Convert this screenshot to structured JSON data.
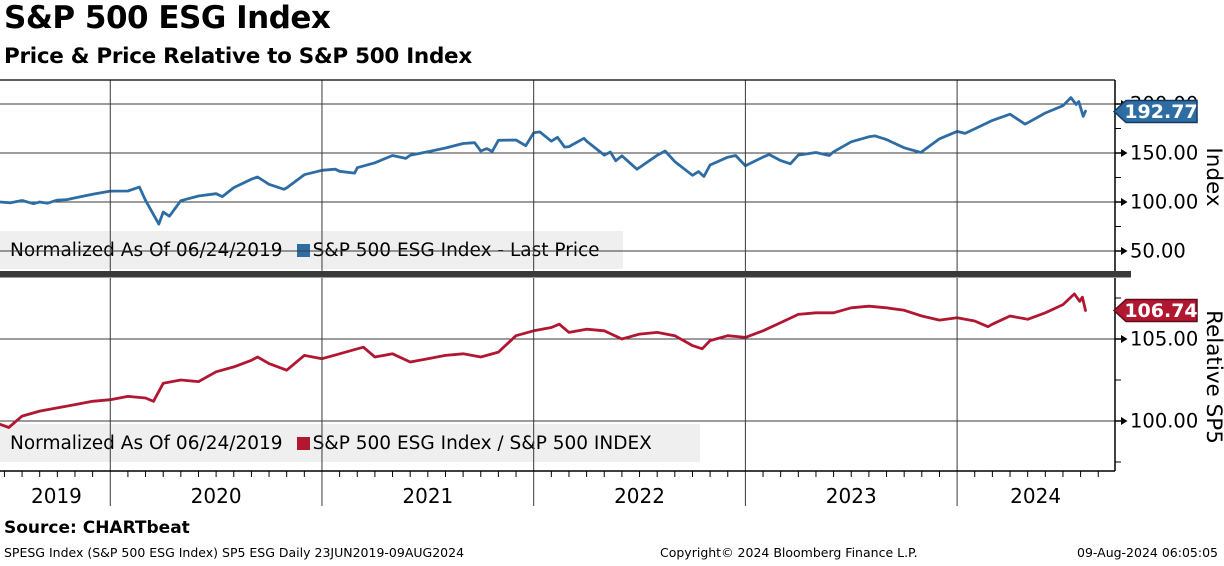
{
  "header": {
    "title": "S&P 500 ESG Index",
    "subtitle": "Price & Price Relative to S&P 500 Index"
  },
  "legends": [
    {
      "note": "Normalized As Of 06/24/2019",
      "series": "S&P 500 ESG Index - Last Price",
      "swatch_color": "#2e6da4"
    },
    {
      "note": "Normalized As Of 06/24/2019",
      "series": "S&P 500 ESG Index / S&P 500 INDEX",
      "swatch_color": "#b11731"
    }
  ],
  "axis_titles": {
    "top": "Index",
    "bottom": "Relative SP5"
  },
  "footer": {
    "source": "Source: CHARTbeat",
    "left": "SPESG Index (S&P 500 ESG Index) SP5 ESG  Daily 23JUN2019-09AUG2024",
    "center": "Copyright© 2024 Bloomberg Finance L.P.",
    "right": "09-Aug-2024 06:05:05"
  },
  "chart_data": {
    "type": "line",
    "x_axis": {
      "xlim_months_from_2019_06_24": [
        0,
        63.2
      ],
      "year_boundaries": [
        6.25,
        18.25,
        30.25,
        42.25,
        54.25
      ],
      "year_labels": [
        {
          "label": "2019",
          "t": 3.2
        },
        {
          "label": "2020",
          "t": 12.25
        },
        {
          "label": "2021",
          "t": 24.25
        },
        {
          "label": "2022",
          "t": 36.25
        },
        {
          "label": "2023",
          "t": 48.25
        },
        {
          "label": "2024",
          "t": 58.7
        }
      ],
      "range_text": "23JUN2019-09AUG2024",
      "frequency": "Daily"
    },
    "panels": [
      {
        "name": "S&P 500 ESG Index - Last Price",
        "color": "#2e6da4",
        "axis_label": "Index",
        "last_value": 192.77,
        "last_label": "192.77",
        "ylim": [
          29.6,
          224.5
        ],
        "yticks": [
          {
            "v": 200,
            "label": "200.00"
          },
          {
            "v": 150,
            "label": "150.00"
          },
          {
            "v": 100,
            "label": "100.00"
          },
          {
            "v": 50,
            "label": "50.00"
          }
        ],
        "yminors": [
          75,
          125,
          175
        ],
        "points": [
          [
            0,
            100
          ],
          [
            0.6,
            99.2
          ],
          [
            1.25,
            101.5
          ],
          [
            1.9,
            98.3
          ],
          [
            2.25,
            100.0
          ],
          [
            2.7,
            98.8
          ],
          [
            3.25,
            101.9
          ],
          [
            3.8,
            102.5
          ],
          [
            4.25,
            104.2
          ],
          [
            5.25,
            108.0
          ],
          [
            6.25,
            111.1
          ],
          [
            7.25,
            111.2
          ],
          [
            7.9,
            115.2
          ],
          [
            8.25,
            101.7
          ],
          [
            9.0,
            77.5
          ],
          [
            9.25,
            89.7
          ],
          [
            9.6,
            85.5
          ],
          [
            10.25,
            101.3
          ],
          [
            11.25,
            106.1
          ],
          [
            12.25,
            108.5
          ],
          [
            12.6,
            105.5
          ],
          [
            13.25,
            114.7
          ],
          [
            14.25,
            123.3
          ],
          [
            14.6,
            125.5
          ],
          [
            15.25,
            118.1
          ],
          [
            16.1,
            113.0
          ],
          [
            16.25,
            114.4
          ],
          [
            17.25,
            127.9
          ],
          [
            18.25,
            132.4
          ],
          [
            19.0,
            133.5
          ],
          [
            19.25,
            131.3
          ],
          [
            20.1,
            129.5
          ],
          [
            20.25,
            135.0
          ],
          [
            21.25,
            140.0
          ],
          [
            22.25,
            147.5
          ],
          [
            23.0,
            144.5
          ],
          [
            23.25,
            147.8
          ],
          [
            24.25,
            151.3
          ],
          [
            25.25,
            155.1
          ],
          [
            26.25,
            159.7
          ],
          [
            26.9,
            160.5
          ],
          [
            27.25,
            152.0
          ],
          [
            27.6,
            154.5
          ],
          [
            27.9,
            151.5
          ],
          [
            28.25,
            163.0
          ],
          [
            29.25,
            163.3
          ],
          [
            29.8,
            157.5
          ],
          [
            30.25,
            170.6
          ],
          [
            30.6,
            171.5
          ],
          [
            31.25,
            162.0
          ],
          [
            31.6,
            166.0
          ],
          [
            32.0,
            156.0
          ],
          [
            32.25,
            156.5
          ],
          [
            33.1,
            165.0
          ],
          [
            33.25,
            162.2
          ],
          [
            34.25,
            147.9
          ],
          [
            34.6,
            151.0
          ],
          [
            34.9,
            142.0
          ],
          [
            35.25,
            147.2
          ],
          [
            36.1,
            133.5
          ],
          [
            36.25,
            135.2
          ],
          [
            37.25,
            147.7
          ],
          [
            37.7,
            152.0
          ],
          [
            38.25,
            141.2
          ],
          [
            39.25,
            127.3
          ],
          [
            39.6,
            131.0
          ],
          [
            39.9,
            126.0
          ],
          [
            40.25,
            137.8
          ],
          [
            41.25,
            145.7
          ],
          [
            41.7,
            147.5
          ],
          [
            42.25,
            136.9
          ],
          [
            43.25,
            145.8
          ],
          [
            43.6,
            148.5
          ],
          [
            44.25,
            142.3
          ],
          [
            44.8,
            139.0
          ],
          [
            45.25,
            147.9
          ],
          [
            46.25,
            150.5
          ],
          [
            47.0,
            147.5
          ],
          [
            47.25,
            151.2
          ],
          [
            48.25,
            161.4
          ],
          [
            49.25,
            166.5
          ],
          [
            49.6,
            167.5
          ],
          [
            50.25,
            163.7
          ],
          [
            51.25,
            155.3
          ],
          [
            52.2,
            150.5
          ],
          [
            52.25,
            151.2
          ],
          [
            53.25,
            164.5
          ],
          [
            54.25,
            172.1
          ],
          [
            54.7,
            170.0
          ],
          [
            55.25,
            174.6
          ],
          [
            56.25,
            183.3
          ],
          [
            57.25,
            189.6
          ],
          [
            58.1,
            179.5
          ],
          [
            58.25,
            180.8
          ],
          [
            59.25,
            190.8
          ],
          [
            60.25,
            198.3
          ],
          [
            60.7,
            206.5
          ],
          [
            61.0,
            199.5
          ],
          [
            61.15,
            202.5
          ],
          [
            61.4,
            187.5
          ],
          [
            61.53,
            192.77
          ]
        ]
      },
      {
        "name": "S&P 500 ESG Index / S&P 500 INDEX",
        "color": "#b11731",
        "axis_label": "Relative SP5",
        "last_value": 106.74,
        "last_label": "106.74",
        "ylim": [
          96.95,
          108.72
        ],
        "yticks": [
          {
            "v": 105,
            "label": "105.00"
          },
          {
            "v": 100,
            "label": "100.00"
          }
        ],
        "yminors": [
          97.5,
          102.5,
          107.5
        ],
        "points": [
          [
            0,
            99.8
          ],
          [
            0.5,
            99.6
          ],
          [
            1.25,
            100.3
          ],
          [
            2.25,
            100.6
          ],
          [
            3.25,
            100.8
          ],
          [
            4.25,
            101.0
          ],
          [
            5.25,
            101.2
          ],
          [
            6.25,
            101.3
          ],
          [
            7.25,
            101.5
          ],
          [
            8.25,
            101.4
          ],
          [
            8.7,
            101.2
          ],
          [
            9.25,
            102.3
          ],
          [
            10.25,
            102.5
          ],
          [
            11.25,
            102.4
          ],
          [
            12.25,
            103.0
          ],
          [
            13.25,
            103.3
          ],
          [
            14.25,
            103.7
          ],
          [
            14.6,
            103.9
          ],
          [
            15.25,
            103.5
          ],
          [
            16.25,
            103.1
          ],
          [
            17.25,
            104.0
          ],
          [
            18.25,
            103.8
          ],
          [
            19.25,
            104.1
          ],
          [
            20.25,
            104.4
          ],
          [
            20.6,
            104.5
          ],
          [
            21.25,
            103.9
          ],
          [
            22.25,
            104.1
          ],
          [
            23.25,
            103.6
          ],
          [
            24.25,
            103.8
          ],
          [
            25.25,
            104.0
          ],
          [
            26.25,
            104.1
          ],
          [
            27.25,
            103.9
          ],
          [
            28.25,
            104.2
          ],
          [
            29.25,
            105.2
          ],
          [
            30.25,
            105.5
          ],
          [
            31.25,
            105.7
          ],
          [
            31.7,
            105.9
          ],
          [
            32.25,
            105.4
          ],
          [
            33.25,
            105.6
          ],
          [
            34.25,
            105.5
          ],
          [
            35.25,
            105.0
          ],
          [
            36.25,
            105.3
          ],
          [
            37.25,
            105.4
          ],
          [
            38.25,
            105.2
          ],
          [
            39.25,
            104.6
          ],
          [
            39.8,
            104.4
          ],
          [
            40.25,
            104.9
          ],
          [
            41.25,
            105.2
          ],
          [
            42.25,
            105.1
          ],
          [
            43.25,
            105.5
          ],
          [
            44.25,
            106.0
          ],
          [
            45.25,
            106.5
          ],
          [
            46.25,
            106.6
          ],
          [
            47.25,
            106.6
          ],
          [
            48.25,
            106.9
          ],
          [
            49.25,
            107.0
          ],
          [
            50.25,
            106.9
          ],
          [
            51.25,
            106.75
          ],
          [
            52.25,
            106.4
          ],
          [
            53.25,
            106.15
          ],
          [
            54.25,
            106.3
          ],
          [
            55.25,
            106.1
          ],
          [
            56.0,
            105.75
          ],
          [
            56.25,
            105.9
          ],
          [
            57.25,
            106.4
          ],
          [
            58.25,
            106.2
          ],
          [
            59.25,
            106.6
          ],
          [
            60.25,
            107.1
          ],
          [
            60.9,
            107.75
          ],
          [
            61.2,
            107.3
          ],
          [
            61.35,
            107.55
          ],
          [
            61.53,
            106.74
          ]
        ]
      }
    ]
  }
}
